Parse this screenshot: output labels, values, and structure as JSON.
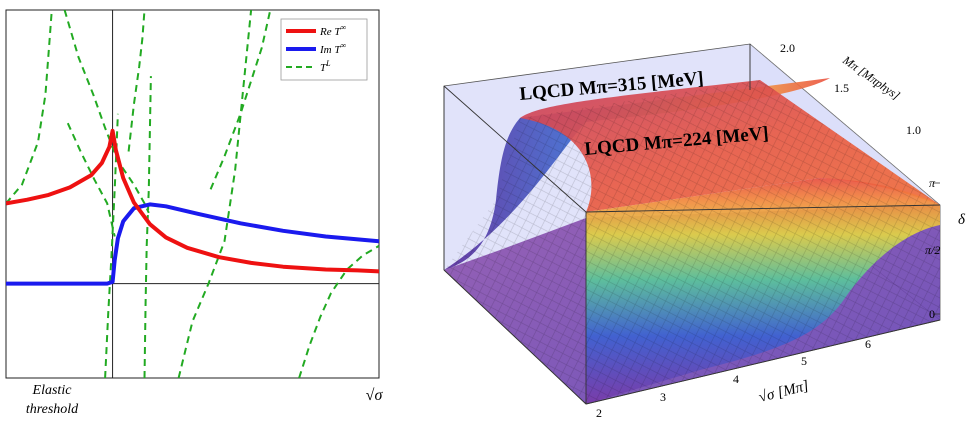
{
  "chart_data": [
    {
      "type": "line",
      "panel": "left",
      "x_label_left": [
        "Elastic",
        "threshold"
      ],
      "x_label_right": "√σ",
      "legend": [
        {
          "name": "Re T∞",
          "label_main": "Re T",
          "label_sup": "∞",
          "color": "#ee1111",
          "style": "solid"
        },
        {
          "name": "Im T∞",
          "label_main": "Im T",
          "label_sup": "∞",
          "color": "#1a1aee",
          "style": "solid"
        },
        {
          "name": "TL",
          "label_main": "T",
          "label_sup": "L",
          "color": "#22aa22",
          "style": "dashed"
        }
      ],
      "legend_position": "top-right",
      "axes_ticks": "none",
      "threshold_x": 1.0,
      "x_range": [
        0.0,
        3.5
      ],
      "y_range": [
        -1.0,
        2.9
      ],
      "series": [
        {
          "name": "Re T∞",
          "color": "#ee1111",
          "x": [
            0.0,
            0.2,
            0.4,
            0.6,
            0.8,
            0.9,
            0.97,
            1.0,
            1.03,
            1.1,
            1.2,
            1.35,
            1.5,
            1.7,
            2.0,
            2.3,
            2.6,
            3.0,
            3.3,
            3.5
          ],
          "y": [
            0.85,
            0.89,
            0.94,
            1.02,
            1.15,
            1.28,
            1.45,
            1.62,
            1.42,
            1.12,
            0.86,
            0.63,
            0.49,
            0.38,
            0.28,
            0.22,
            0.18,
            0.15,
            0.14,
            0.13
          ]
        },
        {
          "name": "Im T∞",
          "color": "#1a1aee",
          "x": [
            0.0,
            0.95,
            1.0,
            1.02,
            1.05,
            1.1,
            1.2,
            1.35,
            1.5,
            1.8,
            2.2,
            2.6,
            3.0,
            3.5
          ],
          "y": [
            0.0,
            0.0,
            0.02,
            0.25,
            0.48,
            0.66,
            0.8,
            0.84,
            0.82,
            0.74,
            0.64,
            0.56,
            0.5,
            0.45
          ]
        },
        {
          "name": "TL",
          "color": "#22aa22",
          "branches": [
            {
              "x": [
                0.0,
                0.15,
                0.3,
                0.37,
                0.41,
                0.43
              ],
              "y": [
                0.85,
                1.05,
                1.5,
                2.0,
                2.6,
                2.9
              ]
            },
            {
              "x": [
                0.93,
                0.96,
                0.99,
                1.02,
                1.05
              ],
              "y": [
                -1.0,
                -0.3,
                0.3,
                1.0,
                1.8
              ]
            },
            {
              "x": [
                1.3,
                1.31,
                1.32,
                1.34,
                1.36
              ],
              "y": [
                -1.0,
                -0.2,
                0.4,
                1.0,
                2.2
              ]
            },
            {
              "x": [
                0.55,
                0.68,
                0.82,
                0.93,
                1.05,
                1.2,
                1.3,
                1.34
              ],
              "y": [
                2.9,
                2.4,
                2.0,
                1.65,
                1.3,
                1.05,
                0.85,
                0.75
              ]
            },
            {
              "x": [
                0.58,
                0.7,
                0.83,
                0.95,
                1.02
              ],
              "y": [
                1.7,
                1.4,
                1.1,
                0.85,
                0.5
              ]
            },
            {
              "x": [
                1.62,
                1.75,
                1.9,
                2.05,
                2.15,
                2.22,
                2.3
              ],
              "y": [
                -1.0,
                -0.4,
                0.0,
                0.45,
                1.2,
                2.0,
                2.9
              ]
            },
            {
              "x": [
                1.92,
                2.05,
                2.2,
                2.4,
                2.48
              ],
              "y": [
                1.0,
                1.35,
                1.8,
                2.5,
                2.9
              ]
            },
            {
              "x": [
                2.75,
                2.85,
                2.95,
                3.05,
                3.2,
                3.35,
                3.5
              ],
              "y": [
                -1.0,
                -0.65,
                -0.35,
                -0.1,
                0.15,
                0.3,
                0.4
              ]
            },
            {
              "x": [
                1.15,
                1.2,
                1.25,
                1.28,
                1.3
              ],
              "y": [
                1.4,
                1.9,
                2.3,
                2.6,
                2.9
              ]
            }
          ]
        }
      ]
    },
    {
      "type": "surface",
      "panel": "right",
      "x_axis_label": "√σ [Mπ]",
      "x_ticks": [
        "2",
        "3",
        "4",
        "5",
        "6"
      ],
      "y_axis_label": "Mπ [Mπphys]",
      "y_ticks": [
        "1.0",
        "1.5",
        "2.0"
      ],
      "z_axis_label": "δ",
      "z_ticks": [
        "0",
        "π/2",
        "π"
      ],
      "annotations": [
        "LQCD Mπ=315 [MeV]",
        "LQCD Mπ=224 [MeV]"
      ],
      "x_range": [
        2,
        7
      ],
      "y_range": [
        1.0,
        2.2
      ],
      "z_range": [
        0,
        3.14
      ],
      "description_model": "phase shift rising from 0 to π across resonance"
    }
  ]
}
